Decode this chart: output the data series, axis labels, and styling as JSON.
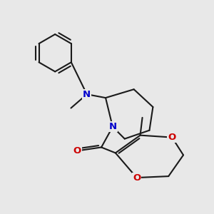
{
  "bg_color": "#e8e8e8",
  "bond_color": "#1a1a1a",
  "N_color": "#0000cc",
  "O_color": "#cc0000",
  "bond_width": 1.5,
  "fig_size": [
    3.0,
    3.0
  ],
  "dpi": 100,
  "xlim": [
    0,
    10
  ],
  "ylim": [
    0,
    10
  ]
}
